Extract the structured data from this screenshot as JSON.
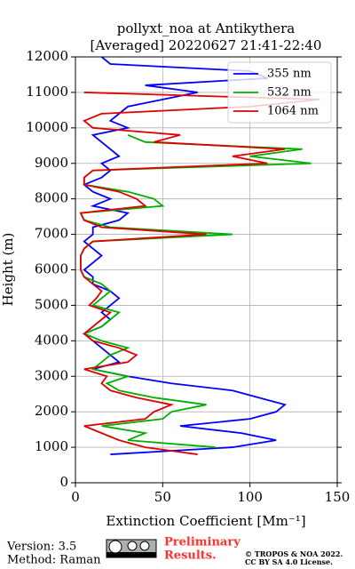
{
  "chart_data": {
    "type": "line",
    "title": "pollyxt_noa at Antikythera",
    "subtitle": "[Averaged] 20220627 21:41-22:40",
    "x_label": "Extinction Coefficient [Mm⁻¹]",
    "y_label": "Height (m)",
    "y": [
      800,
      1000,
      1200,
      1400,
      1600,
      1800,
      2000,
      2200,
      2400,
      2600,
      2800,
      3000,
      3200,
      3400,
      3600,
      3800,
      4000,
      4200,
      4400,
      4600,
      4800,
      5000,
      5200,
      5400,
      5600,
      5800,
      6000,
      6200,
      6400,
      6600,
      6800,
      7000,
      7200,
      7400,
      7600,
      7800,
      8000,
      8200,
      8400,
      8600,
      8800,
      9000,
      9200,
      9400,
      9600,
      9800,
      10000,
      10200,
      10400,
      10600,
      10800,
      11000,
      11200,
      11400,
      11600,
      11800,
      12000
    ],
    "series": [
      {
        "name": "355 nm",
        "color": "#0000ff",
        "values": [
          20,
          90,
          115,
          95,
          60,
          100,
          115,
          120,
          105,
          90,
          55,
          30,
          10,
          25,
          20,
          15,
          10,
          5,
          15,
          20,
          15,
          20,
          25,
          20,
          10,
          10,
          5,
          10,
          15,
          10,
          5,
          10,
          10,
          25,
          30,
          10,
          20,
          10,
          5,
          15,
          20,
          15,
          25,
          20,
          15,
          10,
          30,
          20,
          25,
          30,
          50,
          70,
          40,
          110,
          100,
          20,
          15
        ]
      },
      {
        "name": "532 nm",
        "color": "#00b000",
        "values": [
          null,
          80,
          30,
          40,
          15,
          50,
          55,
          75,
          45,
          25,
          18,
          30,
          10,
          15,
          20,
          30,
          15,
          5,
          15,
          20,
          25,
          10,
          15,
          20,
          15,
          5,
          3,
          3,
          3,
          5,
          10,
          90,
          20,
          5,
          3,
          50,
          45,
          30,
          5,
          5,
          10,
          135,
          100,
          130,
          40,
          30,
          null,
          null,
          null,
          null,
          null,
          null,
          null,
          null,
          null,
          null,
          null
        ]
      },
      {
        "name": "1064 nm",
        "color": "#e00000",
        "values": [
          70,
          40,
          25,
          15,
          5,
          40,
          45,
          55,
          35,
          20,
          15,
          18,
          5,
          30,
          35,
          25,
          10,
          5,
          10,
          15,
          20,
          8,
          12,
          15,
          10,
          5,
          3,
          3,
          3,
          5,
          10,
          75,
          15,
          5,
          3,
          40,
          35,
          25,
          5,
          5,
          10,
          110,
          90,
          120,
          45,
          60,
          10,
          5,
          15,
          100,
          140,
          5,
          null,
          null,
          null,
          null,
          null
        ]
      }
    ],
    "xlim": [
      0,
      150
    ],
    "xticks": [
      0,
      50,
      100,
      150
    ],
    "ylim": [
      0,
      12000
    ],
    "yticks": [
      0,
      1000,
      2000,
      3000,
      4000,
      5000,
      6000,
      7000,
      8000,
      9000,
      10000,
      11000,
      12000
    ],
    "grid": true,
    "legend": "upper right"
  },
  "footer": {
    "version": "Version: 3.5",
    "method": "Method: Raman",
    "preliminary": [
      "Preliminary",
      "Results."
    ],
    "copyright": [
      "© TROPOS & NOA 2022.",
      "CC BY SA 4.0 License."
    ]
  }
}
